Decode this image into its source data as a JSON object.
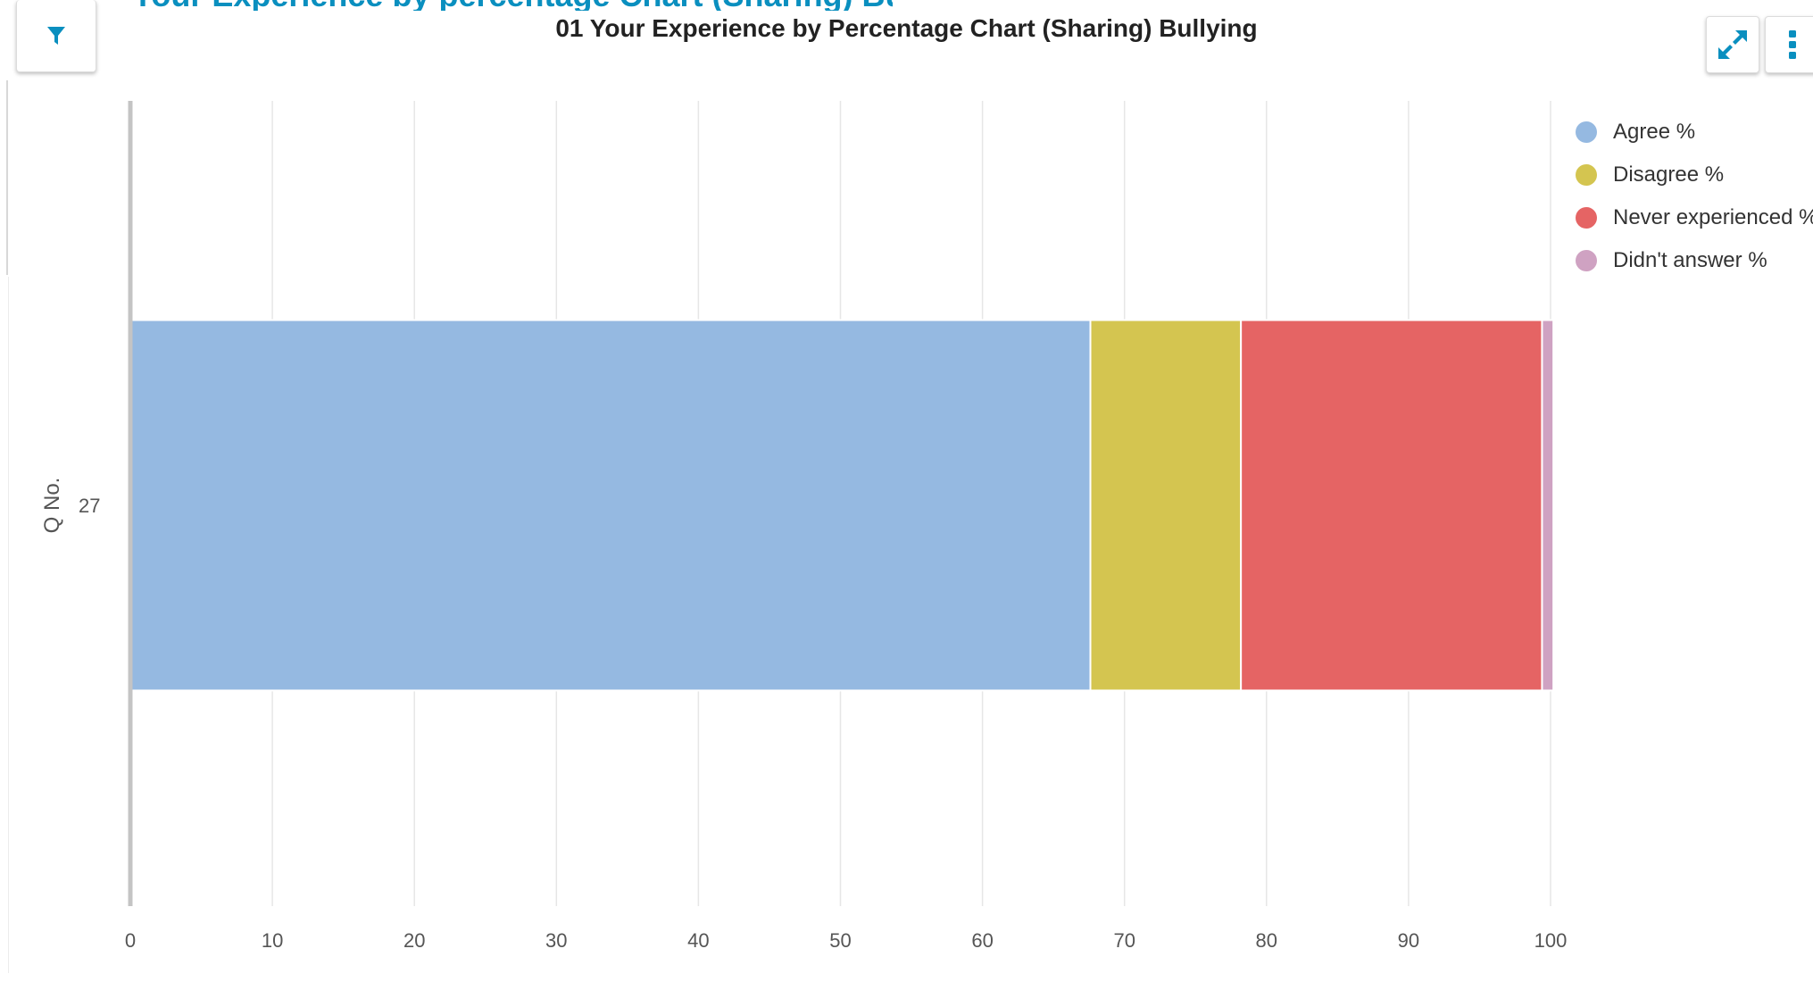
{
  "header": {
    "partial_title": "Your Experience by percentage Chart (Sharing) Bullying"
  },
  "toolbar": {
    "filter_icon": "filter-icon",
    "expand_icon": "expand-icon",
    "menu_icon": "more-vertical-icon",
    "accent": "#0a8fbf"
  },
  "chart_data": {
    "type": "bar",
    "orientation": "horizontal",
    "stacked": true,
    "title": "01 Your Experience by Percentage Chart (Sharing) Bullying",
    "xlabel": "",
    "ylabel": "Q No.",
    "categories": [
      "27"
    ],
    "xlim": [
      0,
      100
    ],
    "xticks": [
      0,
      10,
      20,
      30,
      40,
      50,
      60,
      70,
      80,
      90,
      100
    ],
    "grid": true,
    "legend_position": "top-right",
    "series": [
      {
        "name": "Agree %",
        "values": [
          67.6
        ],
        "color": "#95b9e1"
      },
      {
        "name": "Disagree %",
        "values": [
          10.6
        ],
        "color": "#d4c550"
      },
      {
        "name": "Never experienced %",
        "values": [
          21.2
        ],
        "color": "#e56464"
      },
      {
        "name": "Didn't answer %",
        "values": [
          0.8
        ],
        "color": "#cfa2c2"
      }
    ]
  }
}
